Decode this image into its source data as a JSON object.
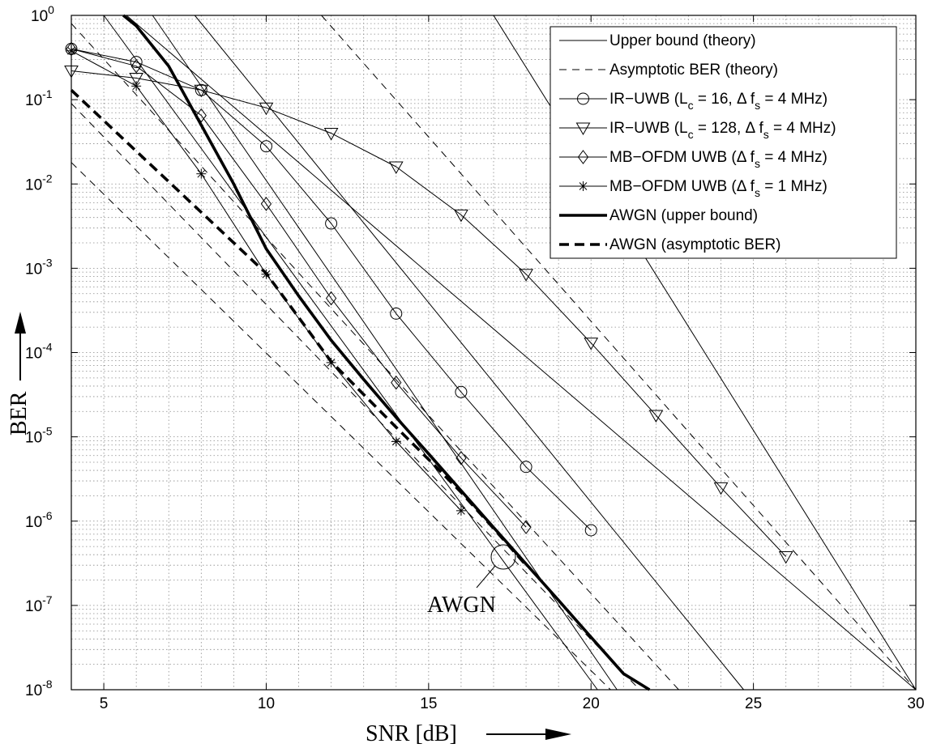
{
  "chart_data": {
    "type": "line",
    "xlabel": "SNR [dB]",
    "ylabel": "BER",
    "xlim": [
      4,
      30
    ],
    "ylim": [
      1e-08,
      1
    ],
    "yscale": "log",
    "grid": true,
    "legend_position": "top-right",
    "x_ticks": [
      "5",
      "10",
      "15",
      "20",
      "25",
      "30"
    ],
    "y_ticks": [
      {
        "base": "10",
        "exp": "0"
      },
      {
        "base": "10",
        "exp": "-1"
      },
      {
        "base": "10",
        "exp": "-2"
      },
      {
        "base": "10",
        "exp": "-3"
      },
      {
        "base": "10",
        "exp": "-4"
      },
      {
        "base": "10",
        "exp": "-5"
      },
      {
        "base": "10",
        "exp": "-6"
      },
      {
        "base": "10",
        "exp": "-7"
      },
      {
        "base": "10",
        "exp": "-8"
      }
    ],
    "annotation": "AWGN",
    "legend": [
      {
        "text": "Upper bound (theory)"
      },
      {
        "text": "Asymptotic BER (theory)"
      },
      {
        "text": "IR−UWB (L",
        "sub": "c",
        "rest": " = 16, Δ f",
        "sub2": "s",
        "rest2": " = 4 MHz)"
      },
      {
        "text": "IR−UWB (L",
        "sub": "c",
        "rest": " = 128, Δ f",
        "sub2": "s",
        "rest2": " = 4 MHz)"
      },
      {
        "text": "MB−OFDM UWB (Δ f",
        "sub": "s",
        "rest": " = 4 MHz)"
      },
      {
        "text": "MB−OFDM UWB (Δ f",
        "sub": "s",
        "rest": " = 1 MHz)"
      },
      {
        "text": "AWGN (upper bound)"
      },
      {
        "text": "AWGN (asymptotic BER)"
      }
    ],
    "series": [
      {
        "name": "IR−UWB (Lc = 16, Δ fs = 4 MHz)",
        "marker": "circle",
        "x": [
          4,
          6,
          8,
          10,
          12,
          14,
          16,
          18,
          20
        ],
        "y": [
          0.4,
          0.28,
          0.13,
          0.028,
          0.0034,
          0.00029,
          3.4e-05,
          4.4e-06,
          7.8e-07
        ]
      },
      {
        "name": "IR−UWB (Lc = 128, Δ fs = 4 MHz)",
        "marker": "triangle",
        "x": [
          4,
          6,
          8,
          10,
          12,
          14,
          16,
          18,
          20,
          22,
          24,
          26
        ],
        "y": [
          0.22,
          0.18,
          0.13,
          0.08,
          0.04,
          0.016,
          0.0043,
          0.00085,
          0.00013,
          1.8e-05,
          2.5e-06,
          3.8e-07
        ]
      },
      {
        "name": "MB−OFDM UWB (Δ fs = 4 MHz)",
        "marker": "diamond",
        "x": [
          4,
          6,
          8,
          10,
          12,
          14,
          16,
          18
        ],
        "y": [
          0.4,
          0.25,
          0.065,
          0.0058,
          0.00044,
          4.4e-05,
          5.6e-06,
          8.5e-07
        ]
      },
      {
        "name": "MB−OFDM UWB (Δ fs = 1 MHz)",
        "marker": "star",
        "x": [
          4,
          6,
          8,
          10,
          12,
          14,
          16
        ],
        "y": [
          0.38,
          0.145,
          0.0132,
          0.00085,
          7.6e-05,
          8.8e-06,
          1.33e-06
        ]
      },
      {
        "name": "AWGN (upper bound)",
        "style": "thick",
        "x": [
          5.6,
          6,
          7,
          8,
          9,
          10,
          11,
          12,
          13,
          14,
          15,
          16,
          17,
          18,
          19,
          20,
          21,
          21.8
        ],
        "y": [
          1,
          0.75,
          0.25,
          0.05,
          0.01,
          0.0017,
          0.00047,
          0.00014,
          4.8e-05,
          1.7e-05,
          6.3e-06,
          2.3e-06,
          8.4e-07,
          3.1e-07,
          1.15e-07,
          4.2e-08,
          1.55e-08,
          1e-08
        ]
      },
      {
        "name": "AWGN (asymptotic BER)",
        "style": "thick-dashed",
        "x": [
          4,
          10,
          12,
          14,
          15,
          16,
          17,
          18
        ],
        "y": [
          0.13,
          0.00087,
          7.8e-05,
          1.3e-05,
          5.4e-06,
          2.2e-06,
          8.2e-07,
          3e-07
        ]
      },
      {
        "name": "Upper bound (theory)",
        "style": "thin",
        "x": [
          5.7,
          30
        ],
        "y": [
          1,
          1e-08
        ]
      },
      {
        "name": "Upper bound (theory)",
        "style": "thin",
        "x": [
          7.8,
          24.7
        ],
        "y": [
          1,
          1e-08
        ]
      },
      {
        "name": "Upper bound (theory)",
        "style": "thin",
        "x": [
          6.5,
          20.8
        ],
        "y": [
          1,
          1e-08
        ]
      },
      {
        "name": "Upper bound (theory)",
        "style": "thin",
        "x": [
          5.0,
          20.2
        ],
        "y": [
          1,
          1e-08
        ]
      },
      {
        "name": "Upper bound (theory)",
        "style": "thin",
        "x": [
          17.0,
          30
        ],
        "y": [
          1,
          1e-08
        ]
      },
      {
        "name": "Asymptotic BER (theory)",
        "style": "thin-dashed",
        "x": [
          11.7,
          30
        ],
        "y": [
          1,
          1e-08
        ]
      },
      {
        "name": "Asymptotic BER (theory)",
        "style": "thin-dashed",
        "x": [
          4,
          22.7
        ],
        "y": [
          0.8,
          1e-08
        ]
      },
      {
        "name": "Asymptotic BER (theory)",
        "style": "thin-dashed",
        "x": [
          4,
          21.5
        ],
        "y": [
          0.09,
          1e-08
        ]
      },
      {
        "name": "Asymptotic BER (theory)",
        "style": "thin-dashed",
        "x": [
          4,
          20.6
        ],
        "y": [
          0.018,
          1e-08
        ]
      }
    ]
  }
}
